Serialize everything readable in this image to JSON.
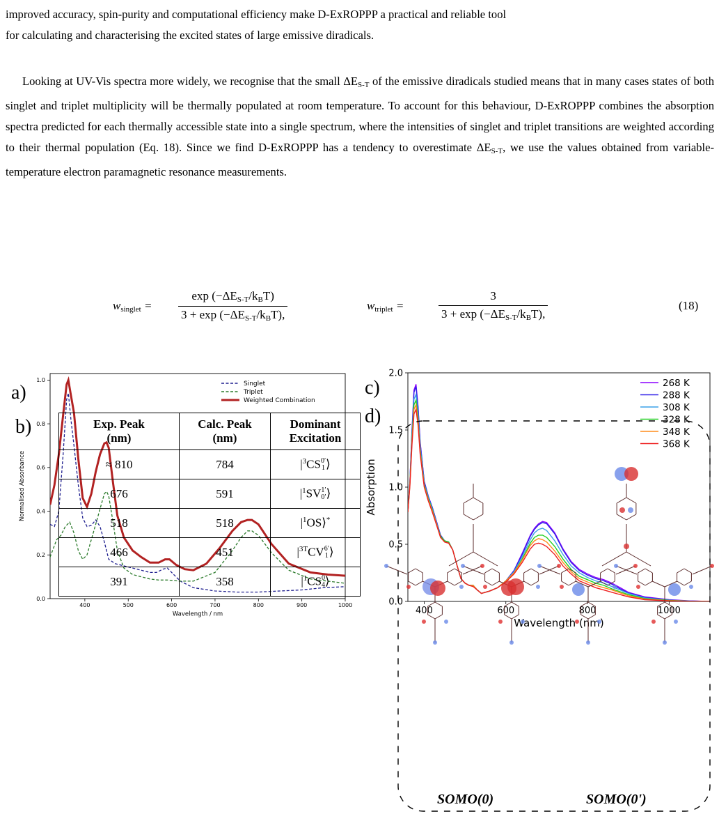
{
  "text": {
    "line0": "improved accuracy, spin-purity and computational efficiency make D-ExROPPP a practical and reliable tool",
    "line1": "for calculating and characterising the excited states of large emissive diradicals.",
    "p2a": "Looking at UV-Vis spectra more widely, we recognise that the small ΔE",
    "st": "S-T",
    "p2b": " of the emissive diradicals studied means that in many cases states of both singlet and triplet multiplicity will be thermally populated at room temperature. To account for this behaviour, D-ExROPPP combines the absorption spectra predicted for each thermally accessible state into a single spectrum, where the intensities of singlet and triplet transitions are weighted according to their thermal population (Eq. 18). Since we find D-ExROPPP has a tendency to overestimate ΔE",
    "p2c": ", we use the values obtained from variable-temperature electron paramagnetic resonance measurements."
  },
  "equation": {
    "w_singlet": "w",
    "singlet_sub": "singlet",
    "num1": "exp (−ΔE",
    "st": "S-T",
    "over_kbt": "/k",
    "b": "B",
    "t_close": "T)",
    "den_prefix": "3 + exp (−ΔE",
    "w_triplet": "w",
    "triplet_sub": "triplet",
    "num2": "3",
    "eq_tail": ",",
    "eq_number": "(18)"
  },
  "panel_labels": {
    "a": "a)",
    "b": "b)",
    "c": "c)",
    "d": "d)"
  },
  "chart_data": [
    {
      "type": "line",
      "panel": "a",
      "xlabel": "Wavelength / nm",
      "ylabel": "Normalised Absorbance",
      "xlim": [
        320,
        1000
      ],
      "ylim": [
        0.0,
        1.03
      ],
      "x_ticks": [
        400,
        500,
        600,
        700,
        800,
        900,
        1000
      ],
      "y_ticks": [
        0.0,
        0.2,
        0.4,
        0.6,
        0.8,
        1.0
      ],
      "legend_position": "top-right",
      "series": [
        {
          "name": "Singlet",
          "style": "dashed",
          "color": "#1f1f8f",
          "x": [
            320,
            330,
            340,
            350,
            358,
            362,
            368,
            375,
            385,
            395,
            405,
            415,
            425,
            435,
            445,
            455,
            470,
            490,
            510,
            530,
            550,
            565,
            580,
            590,
            600,
            620,
            650,
            700,
            750,
            800,
            850,
            900,
            950,
            1000
          ],
          "y": [
            0.34,
            0.33,
            0.4,
            0.66,
            0.91,
            0.94,
            0.82,
            0.7,
            0.52,
            0.37,
            0.33,
            0.335,
            0.36,
            0.33,
            0.26,
            0.18,
            0.16,
            0.15,
            0.14,
            0.13,
            0.12,
            0.12,
            0.135,
            0.14,
            0.12,
            0.08,
            0.05,
            0.035,
            0.03,
            0.03,
            0.035,
            0.04,
            0.05,
            0.055
          ]
        },
        {
          "name": "Triplet",
          "style": "dashed",
          "color": "#2a7a2a",
          "x": [
            320,
            335,
            345,
            355,
            365,
            375,
            385,
            395,
            405,
            415,
            425,
            435,
            445,
            450,
            455,
            465,
            475,
            490,
            510,
            530,
            550,
            570,
            590,
            620,
            650,
            700,
            740,
            760,
            775,
            785,
            800,
            830,
            870,
            920,
            1000
          ],
          "y": [
            0.19,
            0.27,
            0.29,
            0.33,
            0.35,
            0.3,
            0.22,
            0.18,
            0.2,
            0.27,
            0.34,
            0.41,
            0.48,
            0.49,
            0.47,
            0.35,
            0.22,
            0.14,
            0.11,
            0.1,
            0.09,
            0.085,
            0.085,
            0.08,
            0.08,
            0.12,
            0.22,
            0.28,
            0.31,
            0.31,
            0.29,
            0.21,
            0.13,
            0.09,
            0.07
          ]
        },
        {
          "name": "Weighted Combination",
          "style": "solid",
          "color": "#b22222",
          "x": [
            320,
            330,
            340,
            350,
            358,
            362,
            368,
            375,
            385,
            395,
            405,
            415,
            425,
            435,
            445,
            450,
            455,
            465,
            475,
            490,
            510,
            530,
            550,
            570,
            585,
            595,
            610,
            630,
            650,
            680,
            710,
            740,
            760,
            775,
            785,
            800,
            830,
            870,
            920,
            960,
            1000
          ],
          "y": [
            0.43,
            0.52,
            0.66,
            0.84,
            0.98,
            1.0,
            0.93,
            0.85,
            0.64,
            0.46,
            0.42,
            0.48,
            0.58,
            0.66,
            0.71,
            0.715,
            0.69,
            0.53,
            0.38,
            0.28,
            0.22,
            0.19,
            0.165,
            0.165,
            0.18,
            0.18,
            0.155,
            0.135,
            0.13,
            0.16,
            0.23,
            0.31,
            0.35,
            0.36,
            0.36,
            0.34,
            0.25,
            0.16,
            0.12,
            0.11,
            0.105
          ]
        }
      ]
    },
    {
      "type": "line",
      "panel": "c",
      "xlabel": "Wavelength (nm)",
      "ylabel": "Absorption",
      "xlim": [
        360,
        1100
      ],
      "ylim": [
        0.0,
        2.0
      ],
      "x_ticks": [
        400,
        600,
        800,
        1000
      ],
      "y_ticks": [
        0.0,
        0.5,
        1.0,
        1.5,
        2.0
      ],
      "legend_position": "top-right",
      "x": [
        360,
        365,
        370,
        375,
        380,
        385,
        390,
        400,
        410,
        420,
        430,
        440,
        450,
        460,
        470,
        480,
        490,
        500,
        510,
        520,
        530,
        540,
        560,
        580,
        600,
        620,
        640,
        660,
        670,
        680,
        690,
        700,
        720,
        740,
        760,
        780,
        800,
        820,
        840,
        860,
        880,
        900,
        940,
        1000,
        1050,
        1100
      ],
      "series": [
        {
          "name": "268 K",
          "color": "#8b00ff",
          "y": [
            0.78,
            1.05,
            1.5,
            1.85,
            1.9,
            1.7,
            1.4,
            1.05,
            0.92,
            0.82,
            0.7,
            0.58,
            0.53,
            0.52,
            0.45,
            0.32,
            0.2,
            0.16,
            0.14,
            0.14,
            0.1,
            0.07,
            0.09,
            0.12,
            0.18,
            0.27,
            0.42,
            0.58,
            0.64,
            0.68,
            0.7,
            0.69,
            0.6,
            0.46,
            0.35,
            0.28,
            0.24,
            0.21,
            0.19,
            0.16,
            0.12,
            0.08,
            0.04,
            0.015,
            0.005,
            0.0
          ]
        },
        {
          "name": "288 K",
          "color": "#3020e8",
          "y": [
            0.78,
            1.05,
            1.49,
            1.83,
            1.88,
            1.69,
            1.39,
            1.05,
            0.92,
            0.82,
            0.7,
            0.58,
            0.53,
            0.52,
            0.45,
            0.32,
            0.2,
            0.16,
            0.14,
            0.14,
            0.1,
            0.07,
            0.09,
            0.12,
            0.18,
            0.27,
            0.41,
            0.57,
            0.63,
            0.67,
            0.69,
            0.68,
            0.59,
            0.45,
            0.34,
            0.27,
            0.23,
            0.2,
            0.18,
            0.15,
            0.11,
            0.075,
            0.035,
            0.013,
            0.004,
            0.0
          ]
        },
        {
          "name": "308 K",
          "color": "#3aa0e8",
          "y": [
            0.78,
            1.04,
            1.46,
            1.77,
            1.81,
            1.64,
            1.36,
            1.03,
            0.91,
            0.81,
            0.69,
            0.57,
            0.53,
            0.52,
            0.45,
            0.32,
            0.2,
            0.16,
            0.14,
            0.14,
            0.1,
            0.07,
            0.09,
            0.12,
            0.18,
            0.26,
            0.39,
            0.54,
            0.6,
            0.63,
            0.64,
            0.62,
            0.53,
            0.41,
            0.31,
            0.25,
            0.21,
            0.18,
            0.16,
            0.13,
            0.1,
            0.07,
            0.03,
            0.011,
            0.003,
            0.0
          ]
        },
        {
          "name": "328 K",
          "color": "#22d022",
          "y": [
            0.78,
            1.03,
            1.43,
            1.72,
            1.76,
            1.6,
            1.33,
            1.02,
            0.9,
            0.8,
            0.68,
            0.57,
            0.53,
            0.52,
            0.45,
            0.32,
            0.2,
            0.16,
            0.14,
            0.14,
            0.1,
            0.07,
            0.09,
            0.12,
            0.18,
            0.25,
            0.37,
            0.51,
            0.56,
            0.58,
            0.58,
            0.56,
            0.48,
            0.37,
            0.28,
            0.22,
            0.19,
            0.16,
            0.14,
            0.11,
            0.085,
            0.06,
            0.025,
            0.009,
            0.002,
            0.0
          ]
        },
        {
          "name": "348 K",
          "color": "#ff8c1a",
          "y": [
            0.78,
            1.02,
            1.4,
            1.68,
            1.72,
            1.57,
            1.31,
            1.01,
            0.89,
            0.79,
            0.68,
            0.56,
            0.52,
            0.51,
            0.45,
            0.32,
            0.2,
            0.16,
            0.14,
            0.14,
            0.1,
            0.07,
            0.09,
            0.12,
            0.18,
            0.25,
            0.36,
            0.49,
            0.53,
            0.55,
            0.54,
            0.52,
            0.44,
            0.34,
            0.26,
            0.2,
            0.17,
            0.14,
            0.12,
            0.1,
            0.075,
            0.05,
            0.02,
            0.007,
            0.002,
            0.0
          ]
        },
        {
          "name": "368 K",
          "color": "#ee2020",
          "y": [
            0.78,
            1.01,
            1.37,
            1.64,
            1.68,
            1.54,
            1.29,
            1.0,
            0.88,
            0.78,
            0.67,
            0.56,
            0.52,
            0.51,
            0.45,
            0.32,
            0.2,
            0.16,
            0.14,
            0.13,
            0.1,
            0.07,
            0.09,
            0.12,
            0.17,
            0.24,
            0.34,
            0.46,
            0.5,
            0.51,
            0.5,
            0.48,
            0.41,
            0.31,
            0.24,
            0.18,
            0.15,
            0.12,
            0.1,
            0.08,
            0.06,
            0.04,
            0.015,
            0.005,
            0.001,
            0.0
          ]
        }
      ]
    },
    {
      "type": "table",
      "panel": "b",
      "columns": [
        {
          "line1": "Exp. Peak",
          "line2": "(nm)"
        },
        {
          "line1": "Calc. Peak",
          "line2": "(nm)"
        },
        {
          "line1": "Dominant",
          "line2": "Excitation"
        }
      ],
      "rows": [
        {
          "exp": "≈ 810",
          "calc": "784",
          "pre": "3",
          "base": "CS",
          "sub": "1",
          "sup": "0′",
          "star": ""
        },
        {
          "exp": "676",
          "calc": "591",
          "pre": "1",
          "base": "SV",
          "sub": "0′",
          "sup": "1′",
          "star": ""
        },
        {
          "exp": "518",
          "calc": "518",
          "pre": "1",
          "base": "OS",
          "sub": "",
          "sup": "",
          "star": "*"
        },
        {
          "exp": "466",
          "calc": "451",
          "pre": "3T",
          "base": "CV",
          "sub": "1",
          "sup": "6′",
          "star": ""
        },
        {
          "exp": "391",
          "calc": "358",
          "pre": "1",
          "base": "CS",
          "sub": "4",
          "sup": "0",
          "star": ""
        }
      ]
    }
  ],
  "molecules": {
    "left_label": "SOMO(0)",
    "right_label": "SOMO(0')"
  }
}
